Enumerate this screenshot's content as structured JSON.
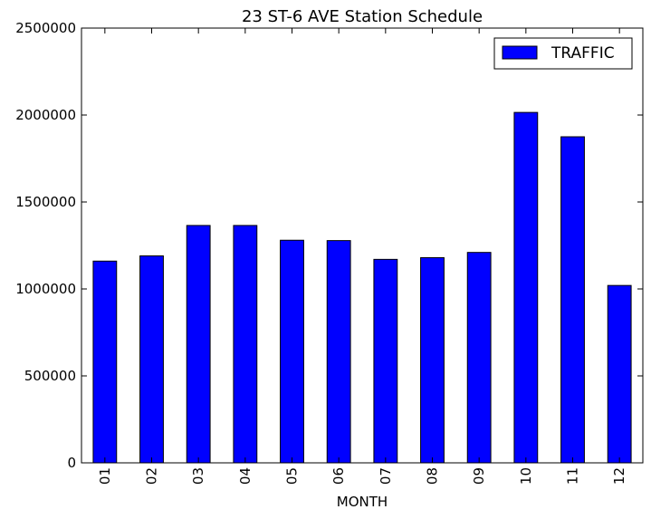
{
  "chart_data": {
    "type": "bar",
    "title": "23 ST-6 AVE Station Schedule",
    "xlabel": "MONTH",
    "ylabel": "",
    "categories": [
      "01",
      "02",
      "03",
      "04",
      "05",
      "06",
      "07",
      "08",
      "09",
      "10",
      "11",
      "12"
    ],
    "series": [
      {
        "name": "TRAFFIC",
        "color": "#0000ff",
        "values": [
          1160000,
          1190000,
          1365000,
          1365000,
          1280000,
          1278000,
          1170000,
          1180000,
          1210000,
          2015000,
          1875000,
          1020000
        ]
      }
    ],
    "ylim": [
      0,
      2500000
    ],
    "yticks": [
      0,
      500000,
      1000000,
      1500000,
      2000000,
      2500000
    ],
    "ytick_labels": [
      "0",
      "500000",
      "1000000",
      "1500000",
      "2000000",
      "2500000"
    ],
    "legend": {
      "position": "top-right",
      "labels": [
        "TRAFFIC"
      ]
    },
    "grid": false
  }
}
